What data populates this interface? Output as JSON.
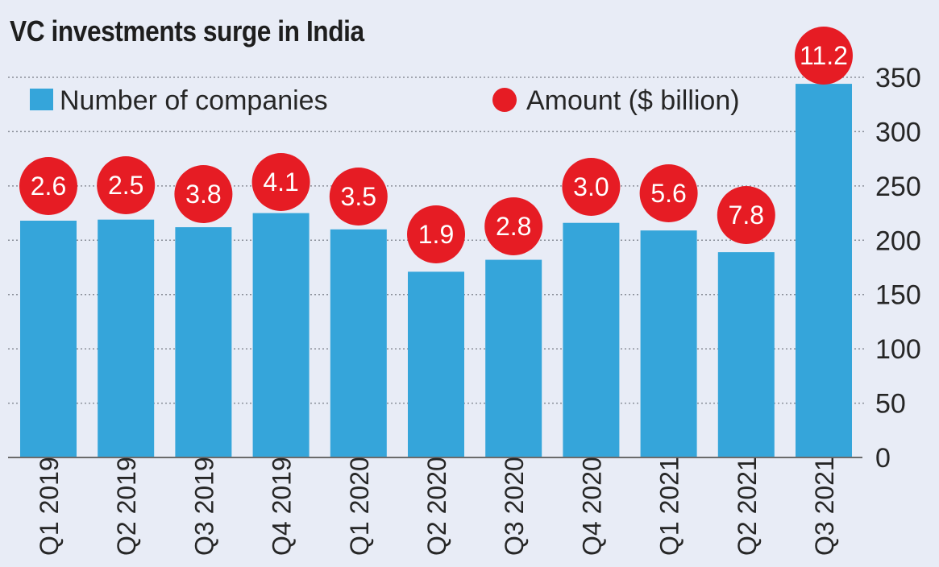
{
  "chart_data": {
    "type": "bar",
    "title": "VC investments surge in India",
    "categories": [
      "Q1 2019",
      "Q2 2019",
      "Q3 2019",
      "Q4 2019",
      "Q1 2020",
      "Q2 2020",
      "Q3 2020",
      "Q4 2020",
      "Q1 2021",
      "Q2 2021",
      "Q3 2021"
    ],
    "series": [
      {
        "name": "Number of companies",
        "type": "bar",
        "color": "#35a5da",
        "values": [
          218,
          219,
          212,
          225,
          210,
          171,
          182,
          216,
          209,
          189,
          344
        ]
      },
      {
        "name": "Amount ($ billion)",
        "type": "bubble-label",
        "color": "#e61c24",
        "values": [
          2.6,
          2.5,
          3.8,
          4.1,
          3.5,
          1.9,
          2.8,
          3.0,
          5.6,
          7.8,
          11.2
        ]
      }
    ],
    "ylim": [
      0,
      350
    ],
    "yticks": [
      0,
      50,
      100,
      150,
      200,
      250,
      300,
      350
    ],
    "y_axis_side": "right",
    "grid": true,
    "legend": "top",
    "xlabel": "",
    "ylabel": ""
  }
}
